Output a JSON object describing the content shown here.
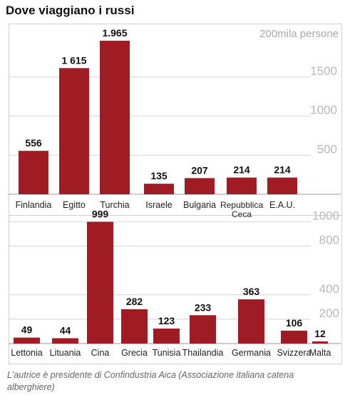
{
  "title": "Dove viaggiano i russi",
  "caption": "L'autrice è presidente di Confindustria Aica (Associazione italiana catena alberghiere)",
  "chart_data": [
    {
      "type": "bar",
      "unit_label": "200mila persone",
      "categories": [
        "Finlandia",
        "Egitto",
        "Turchia",
        "Israele",
        "Bulgaria",
        [
          "Repubblica",
          "Ceca"
        ],
        "E.A.U."
      ],
      "values": [
        556,
        1615,
        1965,
        135,
        207,
        214,
        214
      ],
      "value_labels": [
        "556",
        "1 615",
        "1.965",
        "135",
        "207",
        "214",
        "214"
      ],
      "y_ticks": [
        "500",
        "1000",
        "1500"
      ],
      "y_tick_values": [
        500,
        1000,
        1500
      ],
      "ylim": [
        0,
        2000
      ],
      "grid": true,
      "bar_color": "#a01c25"
    },
    {
      "type": "bar",
      "categories": [
        "Lettonia",
        "Lituania",
        "Cina",
        "Grecia",
        "Tunisia",
        "Thailandia",
        "Germania",
        "Svizzera",
        "Malta"
      ],
      "values": [
        49,
        44,
        999,
        282,
        123,
        233,
        363,
        106,
        12
      ],
      "value_labels": [
        "49",
        "44",
        "999",
        "282",
        "123",
        "233",
        "363",
        "106",
        "12"
      ],
      "y_ticks": [
        "200",
        "400",
        "800",
        "1000"
      ],
      "y_tick_values": [
        200,
        400,
        800,
        1000
      ],
      "ylim": [
        0,
        1000
      ],
      "grid": true,
      "bar_color": "#a01c25"
    }
  ]
}
